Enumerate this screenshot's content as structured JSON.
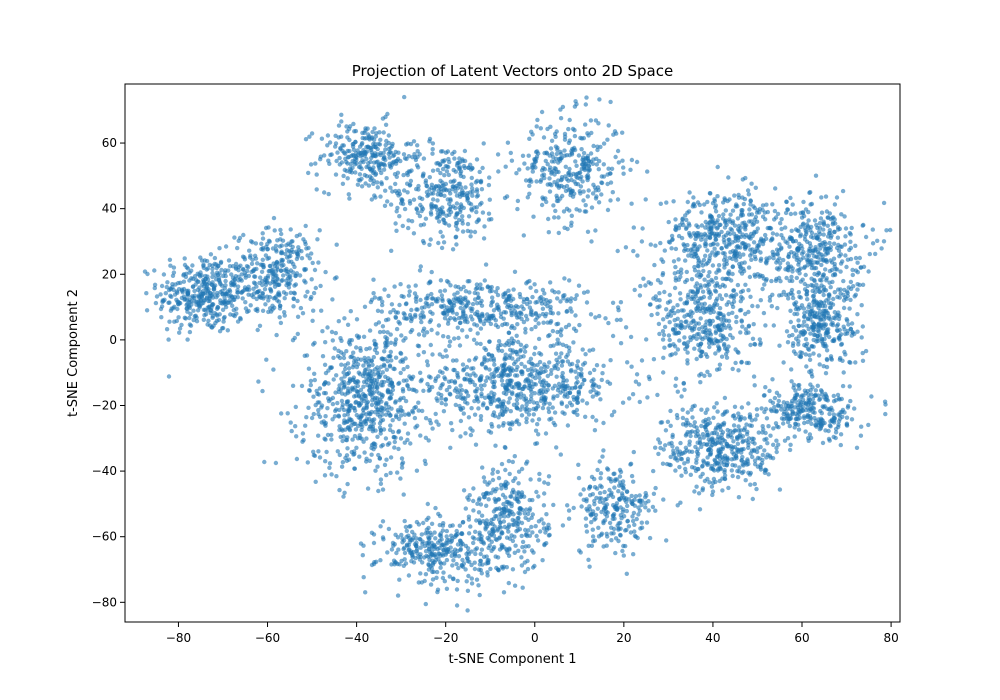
{
  "chart_data": {
    "type": "scatter",
    "title": "Projection of Latent Vectors onto 2D Space",
    "xlabel": "t-SNE Component 1",
    "ylabel": "t-SNE Component 2",
    "xlim": [
      -92,
      82
    ],
    "ylim": [
      -86,
      78
    ],
    "xticks": [
      -80,
      -60,
      -40,
      -20,
      0,
      20,
      40,
      60,
      80
    ],
    "yticks": [
      -80,
      -60,
      -40,
      -20,
      0,
      20,
      40,
      60
    ],
    "grid": false,
    "legend": "none",
    "colors": {
      "points": "#1f77b4"
    },
    "clusters": [
      {
        "cx": -74,
        "cy": 14,
        "sx": 7,
        "sy": 8,
        "n": 380
      },
      {
        "cx": -58,
        "cy": 20,
        "sx": 6,
        "sy": 9,
        "n": 300
      },
      {
        "cx": -38,
        "cy": 56,
        "sx": 7,
        "sy": 7,
        "n": 260
      },
      {
        "cx": -20,
        "cy": 45,
        "sx": 8,
        "sy": 10,
        "n": 320
      },
      {
        "cx": 8,
        "cy": 52,
        "sx": 8,
        "sy": 11,
        "n": 320
      },
      {
        "cx": -12,
        "cy": 10,
        "sx": 16,
        "sy": 6,
        "n": 420
      },
      {
        "cx": -38,
        "cy": -18,
        "sx": 10,
        "sy": 15,
        "n": 650
      },
      {
        "cx": -4,
        "cy": -14,
        "sx": 15,
        "sy": 9,
        "n": 650
      },
      {
        "cx": -22,
        "cy": -64,
        "sx": 9,
        "sy": 7,
        "n": 320
      },
      {
        "cx": -6,
        "cy": -55,
        "sx": 6,
        "sy": 11,
        "n": 300
      },
      {
        "cx": 18,
        "cy": -52,
        "sx": 6,
        "sy": 9,
        "n": 230
      },
      {
        "cx": 42,
        "cy": 32,
        "sx": 9,
        "sy": 9,
        "n": 400
      },
      {
        "cx": 38,
        "cy": 6,
        "sx": 8,
        "sy": 13,
        "n": 420
      },
      {
        "cx": 62,
        "cy": 28,
        "sx": 8,
        "sy": 10,
        "n": 380
      },
      {
        "cx": 64,
        "cy": 5,
        "sx": 6,
        "sy": 9,
        "n": 300
      },
      {
        "cx": 42,
        "cy": -33,
        "sx": 9,
        "sy": 9,
        "n": 420
      },
      {
        "cx": 62,
        "cy": -22,
        "sx": 7,
        "sy": 6,
        "n": 260
      }
    ]
  }
}
